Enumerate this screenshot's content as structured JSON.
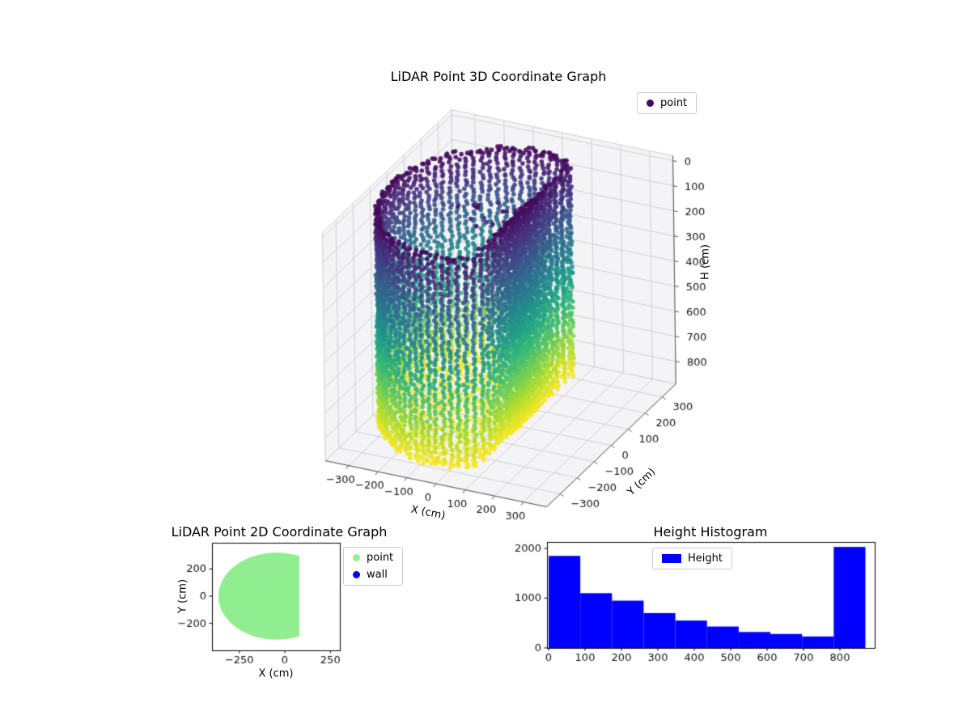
{
  "figure": {
    "background": "#ffffff"
  },
  "chart_data": [
    {
      "type": "scatter3d",
      "title": "LiDAR Point 3D Coordinate Graph",
      "xlabel": "X (cm)",
      "ylabel": "Y (cm)",
      "zlabel": "H (cm)",
      "xlim": [
        -380,
        380
      ],
      "ylim": [
        -380,
        380
      ],
      "zlim": [
        -20,
        890
      ],
      "zaxis_inverted": true,
      "xticks": [
        -300,
        -200,
        -100,
        0,
        100,
        200,
        300
      ],
      "yticks": [
        -300,
        -200,
        -100,
        0,
        100,
        200,
        300
      ],
      "zticks": [
        0,
        100,
        200,
        300,
        400,
        500,
        600,
        700,
        800
      ],
      "colormap": "viridis",
      "legend": [
        {
          "label": "point",
          "marker_color": "#46085c"
        }
      ],
      "point_cloud": {
        "description": "LiDAR scan of a cylindrical room: vertical wall point columns colored by height (viridis: dark purple at H=0 top, yellow at floor H=870), dense yellow floor disk at H=870, sparse dark ceiling points near H=40-140",
        "center_xy_cm": [
          -45,
          0
        ],
        "radius_cm": 320,
        "flat_wall_x_cm": 80,
        "wall_top_cm": 20,
        "floor_cm": 870,
        "wall_columns": 84,
        "column_step_cm": 14,
        "color_value_range_cm": [
          0,
          870
        ]
      }
    },
    {
      "type": "scatter",
      "title": "LiDAR Point 2D Coordinate Graph",
      "xlabel": "X (cm)",
      "ylabel": "Y (cm)",
      "xticks": [
        -250,
        0,
        250
      ],
      "yticks": [
        -200,
        0,
        200
      ],
      "legend": [
        {
          "label": "point",
          "marker_color": "#90ee90"
        },
        {
          "label": "wall",
          "marker_color": "#0000ff"
        }
      ],
      "region": {
        "description": "filled disk of scanned floor points, circle clipped by a flat wall on the right",
        "center_xy_cm": [
          -45,
          0
        ],
        "radius_cm": 320,
        "flat_edge_x_cm": 80,
        "fill_color": "#90ee90"
      }
    },
    {
      "type": "bar",
      "title": "Height Histogram",
      "legend": [
        {
          "label": "Height",
          "marker_color": "#0000ff"
        }
      ],
      "bar_color": "#0000ff",
      "bin_edges_cm": [
        0,
        87,
        174,
        261,
        348,
        435,
        522,
        609,
        696,
        783,
        870
      ],
      "values": [
        1850,
        1100,
        950,
        700,
        550,
        430,
        320,
        280,
        230,
        2030
      ],
      "xticks": [
        0,
        100,
        200,
        300,
        400,
        500,
        600,
        700,
        800
      ],
      "yticks": [
        0,
        1000,
        2000
      ],
      "ylim": [
        0,
        2130
      ],
      "grid": false,
      "legend_position": "upper center"
    }
  ]
}
